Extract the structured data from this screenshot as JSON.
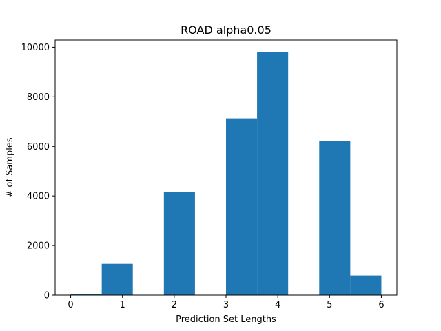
{
  "chart_data": {
    "type": "bar",
    "title": "ROAD alpha0.05",
    "xlabel": "Prediction Set Lengths",
    "ylabel": "# of Samples",
    "xlim": [
      -0.3,
      6.3
    ],
    "ylim": [
      0,
      10290
    ],
    "xticks": [
      0,
      1,
      2,
      3,
      4,
      5,
      6
    ],
    "yticks": [
      0,
      2000,
      4000,
      6000,
      8000,
      10000
    ],
    "bins": [
      {
        "x0": 0.0,
        "x1": 0.6,
        "count": 30
      },
      {
        "x0": 0.6,
        "x1": 1.2,
        "count": 1260
      },
      {
        "x0": 1.2,
        "x1": 1.8,
        "count": 0
      },
      {
        "x0": 1.8,
        "x1": 2.4,
        "count": 4150
      },
      {
        "x0": 2.4,
        "x1": 3.0,
        "count": 0
      },
      {
        "x0": 3.0,
        "x1": 3.6,
        "count": 7130
      },
      {
        "x0": 3.6,
        "x1": 4.2,
        "count": 9800
      },
      {
        "x0": 4.2,
        "x1": 4.8,
        "count": 0
      },
      {
        "x0": 4.8,
        "x1": 5.4,
        "count": 6230
      },
      {
        "x0": 5.4,
        "x1": 6.0,
        "count": 790
      }
    ],
    "bar_color": "#1f77b4",
    "grid": false,
    "legend": "none"
  }
}
